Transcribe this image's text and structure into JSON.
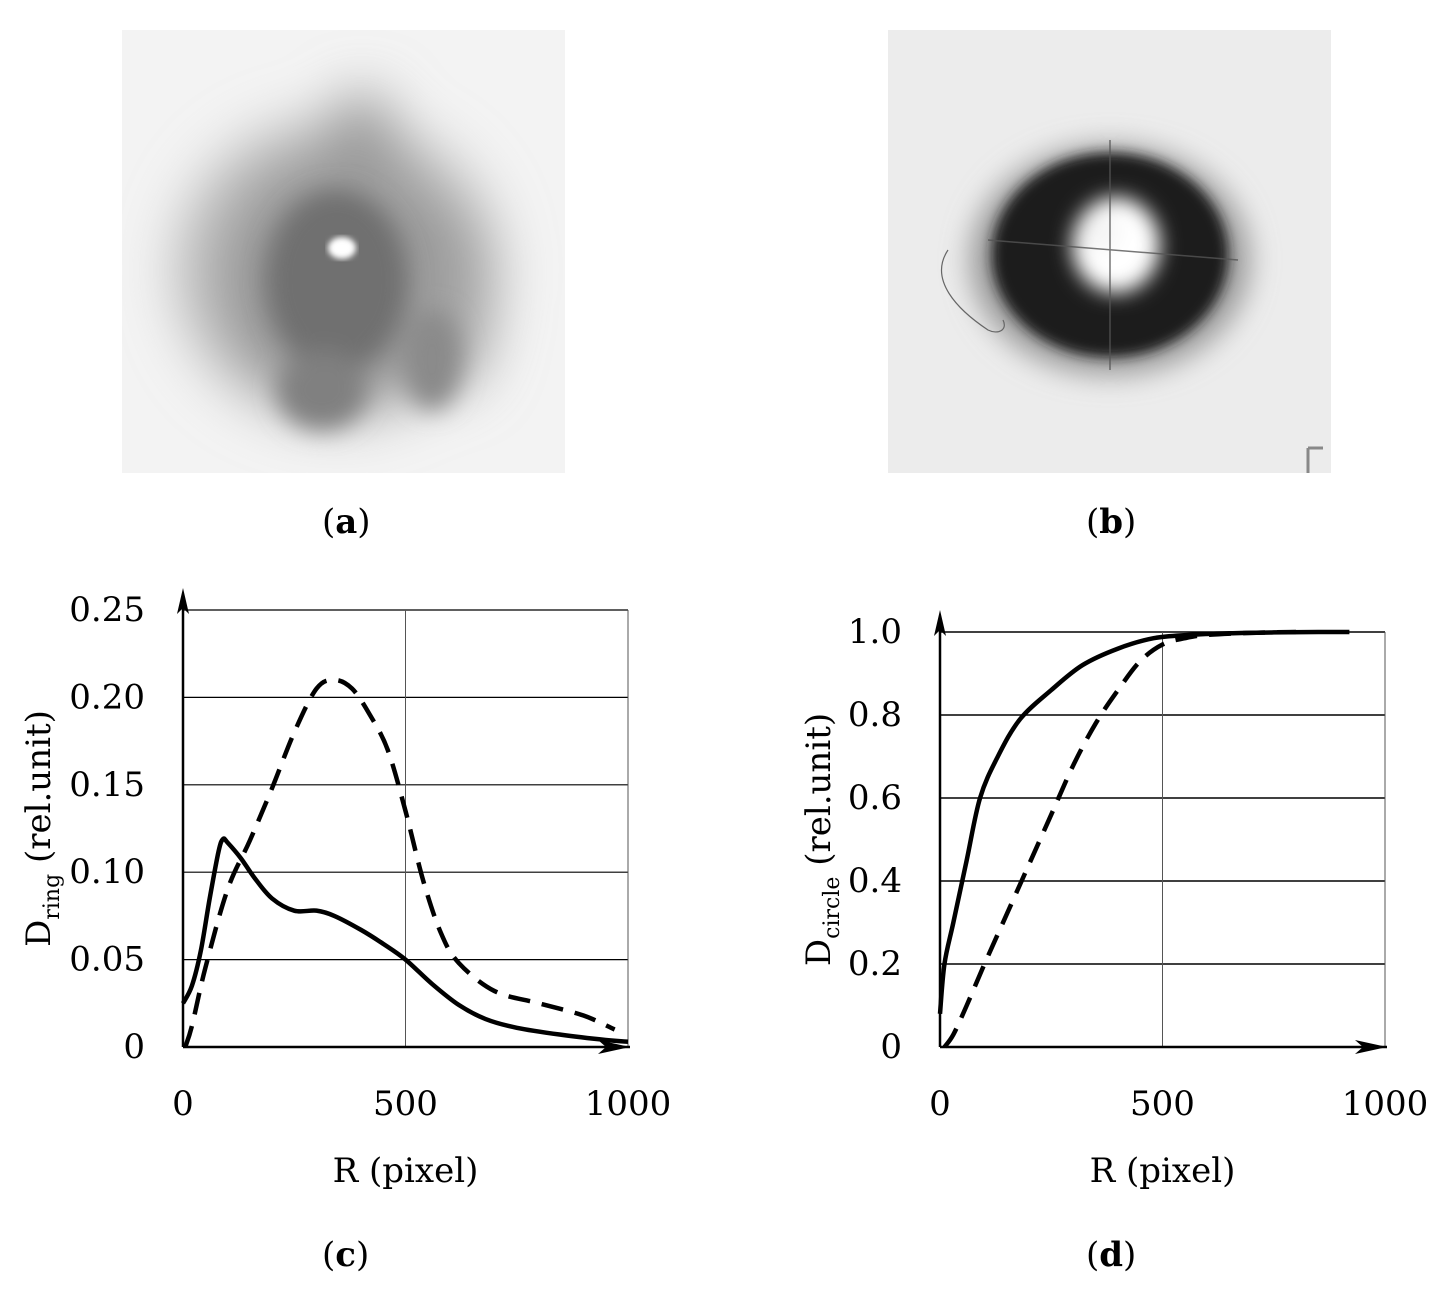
{
  "panels": {
    "a": {
      "label": "a"
    },
    "b": {
      "label": "b"
    },
    "c": {
      "label": "c"
    },
    "d": {
      "label": "d"
    }
  },
  "chart_data": [
    {
      "type": "line",
      "panel": "c",
      "xlabel": "R (pixel)",
      "ylabel_main": "D",
      "ylabel_sub": "ring",
      "ylabel_unit": " (rel.unit)",
      "xlim": [
        0,
        1000
      ],
      "ylim": [
        0,
        0.25
      ],
      "xticks": [
        0,
        500,
        1000
      ],
      "xtick_labels": [
        "0",
        "500",
        "1000"
      ],
      "yticks": [
        0,
        0.05,
        0.1,
        0.15,
        0.2,
        0.25
      ],
      "ytick_labels": [
        "0",
        "0.05",
        "0.10",
        "0.15",
        "0.20",
        "0.25"
      ],
      "grid": true,
      "series": [
        {
          "style": "solid",
          "x": [
            0,
            20,
            40,
            60,
            80,
            90,
            100,
            130,
            160,
            200,
            250,
            300,
            340,
            400,
            450,
            500,
            560,
            620,
            680,
            750,
            850,
            950,
            1000
          ],
          "y": [
            0.025,
            0.035,
            0.055,
            0.085,
            0.112,
            0.119,
            0.117,
            0.108,
            0.097,
            0.085,
            0.078,
            0.078,
            0.075,
            0.067,
            0.059,
            0.05,
            0.036,
            0.024,
            0.016,
            0.011,
            0.007,
            0.004,
            0.003
          ]
        },
        {
          "style": "dashed",
          "x": [
            5,
            20,
            50,
            100,
            150,
            200,
            250,
            300,
            340,
            380,
            420,
            460,
            500,
            540,
            580,
            620,
            700,
            800,
            900,
            970
          ],
          "y": [
            0.0,
            0.012,
            0.045,
            0.09,
            0.118,
            0.148,
            0.18,
            0.205,
            0.21,
            0.205,
            0.19,
            0.17,
            0.135,
            0.095,
            0.065,
            0.048,
            0.032,
            0.025,
            0.018,
            0.01
          ]
        }
      ]
    },
    {
      "type": "line",
      "panel": "d",
      "xlabel": "R (pixel)",
      "ylabel_main": "D",
      "ylabel_sub": "circle",
      "ylabel_unit": " (rel.unit)",
      "xlim": [
        0,
        1000
      ],
      "ylim": [
        0,
        1.0
      ],
      "xticks": [
        0,
        500,
        1000
      ],
      "xtick_labels": [
        "0",
        "500",
        "1000"
      ],
      "yticks": [
        0,
        0.2,
        0.4,
        0.6,
        0.8,
        1.0
      ],
      "ytick_labels": [
        "0",
        "0.2",
        "0.4",
        "0.6",
        "0.8",
        "1.0"
      ],
      "grid": true,
      "series": [
        {
          "style": "solid",
          "x": [
            0,
            10,
            30,
            60,
            90,
            130,
            180,
            250,
            320,
            400,
            480,
            560,
            650,
            750,
            850,
            920
          ],
          "y": [
            0.08,
            0.2,
            0.3,
            0.45,
            0.6,
            0.7,
            0.79,
            0.86,
            0.92,
            0.96,
            0.985,
            0.993,
            0.997,
            0.999,
            1.0,
            1.0
          ]
        },
        {
          "style": "dashed",
          "x": [
            10,
            30,
            60,
            100,
            150,
            200,
            250,
            300,
            350,
            400,
            450,
            500,
            550,
            600,
            700,
            800
          ],
          "y": [
            0.0,
            0.03,
            0.1,
            0.2,
            0.32,
            0.44,
            0.56,
            0.68,
            0.78,
            0.86,
            0.93,
            0.97,
            0.985,
            0.993,
            0.998,
            1.0
          ]
        }
      ]
    }
  ]
}
